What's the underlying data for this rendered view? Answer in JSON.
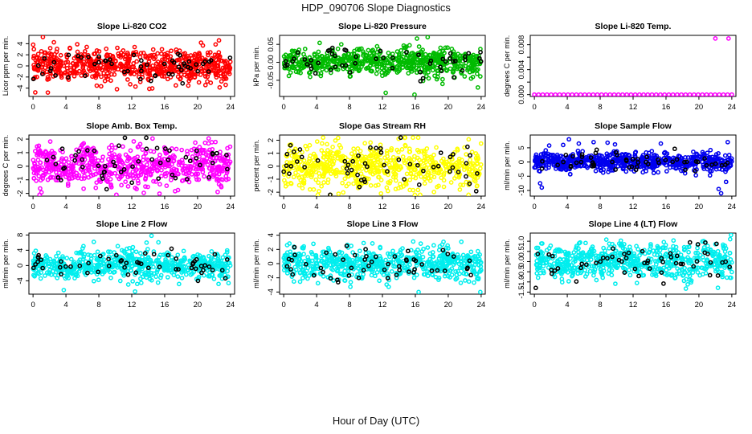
{
  "figure": {
    "title": "HDP_090706  Slope Diagnostics",
    "xlabel": "Hour of Day (UTC)"
  },
  "chart_data": [
    {
      "type": "scatter",
      "title": "Slope Li-820 CO2",
      "ylabel": "Licor ppm per min.",
      "xlim": [
        -0.5,
        24.5
      ],
      "ylim": [
        -5.5,
        5.5
      ],
      "xticks": [
        0,
        4,
        8,
        12,
        16,
        20,
        24
      ],
      "yticks": [
        -4,
        -2,
        0,
        2,
        4
      ],
      "color": "#ff0000",
      "highlight_color": "#000000",
      "pattern": {
        "kind": "noise",
        "n": 650,
        "spread": 1.4,
        "wave": 0.3,
        "clip": 5.2,
        "outliers": [
          [
            1.2,
            5.2
          ],
          [
            1.8,
            -4.8
          ],
          [
            10.2,
            -4.2
          ],
          [
            22.6,
            4.6
          ]
        ]
      },
      "highlight": {
        "n": 55,
        "spread": 1.3
      }
    },
    {
      "type": "scatter",
      "title": "Slope Li-820 Pressure",
      "ylabel": "kPa per min.",
      "xlim": [
        -0.5,
        24.5
      ],
      "ylim": [
        -0.095,
        0.075
      ],
      "xticks": [
        0,
        4,
        8,
        12,
        16,
        20,
        24
      ],
      "yticks": [
        -0.05,
        0.0,
        0.05
      ],
      "ytick_labels": [
        "-0.05",
        "0.00",
        "0.05"
      ],
      "color": "#00bb00",
      "highlight_color": "#000000",
      "pattern": {
        "kind": "noise",
        "n": 650,
        "spread": 0.018,
        "wave": 0.005,
        "clip": 0.09,
        "outliers": [
          [
            7.0,
            0.05
          ],
          [
            12.4,
            -0.085
          ],
          [
            15.9,
            -0.09
          ],
          [
            16.2,
            0.066
          ],
          [
            17.5,
            0.07
          ],
          [
            19.3,
            -0.06
          ],
          [
            23.6,
            -0.07
          ]
        ]
      },
      "highlight": {
        "n": 55,
        "spread": 0.02
      }
    },
    {
      "type": "scatter",
      "title": "Slope Li-820 Temp.",
      "ylabel": "degrees C per min.",
      "xlim": [
        -0.5,
        24.5
      ],
      "ylim": [
        -0.0003,
        0.0095
      ],
      "xticks": [
        0,
        4,
        8,
        12,
        16,
        20,
        24
      ],
      "yticks": [
        0.0,
        0.002,
        0.004,
        0.006,
        0.008
      ],
      "ytick_labels": [
        "0.000",
        "",
        "0.004",
        "",
        "0.008"
      ],
      "color": "#ff00ff",
      "highlight_color": "#000000",
      "pattern": {
        "kind": "flat",
        "n": 48,
        "value": 0.0,
        "outliers": [
          [
            22.0,
            0.009
          ],
          [
            23.6,
            0.009
          ]
        ]
      },
      "highlight": {
        "n": 0,
        "spread": 0
      }
    },
    {
      "type": "scatter",
      "title": "Slope Amb. Box Temp.",
      "ylabel": "degrees C per min.",
      "xlim": [
        -0.5,
        24.5
      ],
      "ylim": [
        -2.2,
        2.3
      ],
      "xticks": [
        0,
        4,
        8,
        12,
        16,
        20,
        24
      ],
      "yticks": [
        -2,
        -1,
        0,
        1,
        2
      ],
      "color": "#ff00ff",
      "highlight_color": "#000000",
      "pattern": {
        "kind": "noise",
        "n": 650,
        "spread": 0.75,
        "wave": 0.2,
        "clip": 2.1,
        "outliers": []
      },
      "highlight": {
        "n": 55,
        "spread": 0.8
      }
    },
    {
      "type": "scatter",
      "title": "Slope Gas Stream RH",
      "ylabel": "percent per min.",
      "xlim": [
        -0.5,
        24.5
      ],
      "ylim": [
        -2.3,
        2.4
      ],
      "xticks": [
        0,
        4,
        8,
        12,
        16,
        20,
        24
      ],
      "yticks": [
        -2,
        -1,
        0,
        1,
        2
      ],
      "color": "#ffff00",
      "highlight_color": "#000000",
      "pattern": {
        "kind": "noise",
        "n": 650,
        "spread": 0.85,
        "wave": 0.2,
        "clip": 2.2,
        "outliers": []
      },
      "highlight": {
        "n": 55,
        "spread": 0.9
      }
    },
    {
      "type": "scatter",
      "title": "Slope Sample Flow",
      "ylabel": "ml/min per min.",
      "xlim": [
        -0.5,
        24.5
      ],
      "ylim": [
        -12,
        9.5
      ],
      "xticks": [
        0,
        4,
        8,
        12,
        16,
        20,
        24
      ],
      "yticks": [
        -10,
        -5,
        0,
        5
      ],
      "color": "#0000ee",
      "highlight_color": "#000000",
      "pattern": {
        "kind": "noise",
        "n": 650,
        "spread": 1.6,
        "wave": 0.5,
        "clip": 11.5,
        "outliers": [
          [
            0.7,
            -7.5
          ],
          [
            0.9,
            -9.0
          ],
          [
            1.8,
            5.8
          ],
          [
            3.5,
            6.0
          ],
          [
            4.2,
            8.0
          ],
          [
            5.4,
            6.5
          ],
          [
            7.2,
            7.0
          ],
          [
            8.9,
            6.8
          ],
          [
            9.8,
            6.2
          ],
          [
            22.4,
            -9.5
          ],
          [
            22.7,
            -11.0
          ],
          [
            23.3,
            -7.0
          ],
          [
            23.5,
            7.0
          ]
        ]
      },
      "highlight": {
        "n": 55,
        "spread": 1.8
      }
    },
    {
      "type": "scatter",
      "title": "Slope Line 2 Flow",
      "ylabel": "ml/min per min.",
      "xlim": [
        -0.5,
        24.5
      ],
      "ylim": [
        -7.5,
        8.5
      ],
      "xticks": [
        0,
        4,
        8,
        12,
        16,
        20,
        24
      ],
      "yticks": [
        -4,
        0,
        4,
        8
      ],
      "color": "#00eeee",
      "highlight_color": "#000000",
      "pattern": {
        "kind": "noise",
        "n": 650,
        "spread": 1.9,
        "wave": 0.5,
        "clip": 7.5,
        "outliers": [
          [
            12.4,
            -6.8
          ],
          [
            14.4,
            7.8
          ],
          [
            13.8,
            6.0
          ]
        ]
      },
      "highlight": {
        "n": 55,
        "spread": 1.7
      }
    },
    {
      "type": "scatter",
      "title": "Slope Line 3 Flow",
      "ylabel": "ml/min per min.",
      "xlim": [
        -0.5,
        24.5
      ],
      "ylim": [
        -4.3,
        4.3
      ],
      "xticks": [
        0,
        4,
        8,
        12,
        16,
        20,
        24
      ],
      "yticks": [
        -4,
        -2,
        0,
        2,
        4
      ],
      "color": "#00eeee",
      "highlight_color": "#000000",
      "pattern": {
        "kind": "noise",
        "n": 650,
        "spread": 1.1,
        "wave": 0.3,
        "clip": 4.1,
        "outliers": [
          [
            16.4,
            -4.0
          ],
          [
            23.9,
            -4.0
          ]
        ]
      },
      "highlight": {
        "n": 55,
        "spread": 1.3
      }
    },
    {
      "type": "scatter",
      "title": "Slope Line 4 (LT) Flow",
      "ylabel": "ml/min per min.",
      "xlim": [
        -0.5,
        24.5
      ],
      "ylim": [
        -1.6,
        1.4
      ],
      "xticks": [
        0,
        4,
        8,
        12,
        16,
        20,
        24
      ],
      "yticks": [
        -1.5,
        -1.0,
        -0.5,
        0.0,
        0.5,
        1.0
      ],
      "ytick_labels": [
        "-1.5",
        "-1.0",
        "-0.5",
        "0.0",
        "0.5",
        "1.0"
      ],
      "color": "#00eeee",
      "highlight_color": "#000000",
      "pattern": {
        "kind": "noise",
        "n": 650,
        "spread": 0.42,
        "wave": 0.1,
        "clip": 1.45,
        "outliers": [
          [
            23.9,
            1.3
          ],
          [
            23.8,
            1.1
          ]
        ]
      },
      "highlight": {
        "n": 55,
        "spread": 0.5
      }
    }
  ]
}
